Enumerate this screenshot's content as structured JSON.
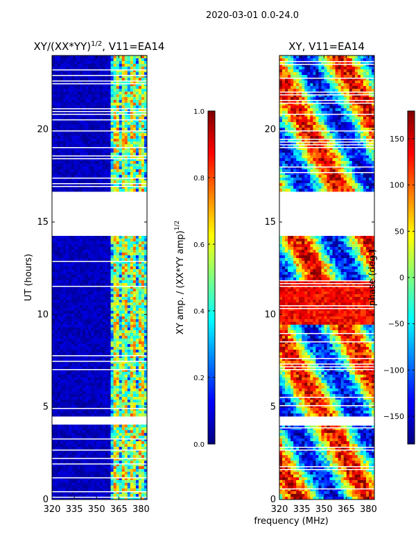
{
  "figure_title": "2020-03-01 0.0-24.0",
  "x_axis_label": "frequency (MHz)",
  "chart_data": [
    {
      "type": "heatmap",
      "title": "XY/(XX*YY)",
      "title_sup": "1/2",
      "title_suffix": ", V11=EA14",
      "xlabel": "",
      "ylabel": "UT (hours)",
      "xlim": [
        320,
        384
      ],
      "ylim": [
        0,
        24
      ],
      "x_ticks": [
        320,
        335,
        350,
        365,
        380
      ],
      "y_ticks": [
        0,
        5,
        10,
        15,
        20
      ],
      "colorbar": {
        "label": "XY amp. / (XX*YY amp)",
        "label_sup": "1/2",
        "range": [
          0.0,
          1.0
        ],
        "ticks": [
          "0.0",
          "0.2",
          "0.4",
          "0.6",
          "0.8",
          "1.0"
        ],
        "tick_values": [
          0.0,
          0.2,
          0.4,
          0.6,
          0.8,
          1.0
        ],
        "colormap": "jet"
      }
    },
    {
      "type": "heatmap",
      "title": "XY, V11=EA14",
      "xlabel": "frequency (MHz)",
      "ylabel": "",
      "xlim": [
        320,
        384
      ],
      "ylim": [
        0,
        24
      ],
      "x_ticks": [
        320,
        335,
        350,
        365,
        380
      ],
      "y_ticks": [
        0,
        5,
        10,
        15,
        20
      ],
      "colorbar": {
        "label": "phase (deg.)",
        "range": [
          -180,
          180
        ],
        "ticks": [
          "150",
          "100",
          "50",
          "0",
          "−50",
          "−100",
          "−150"
        ],
        "tick_values": [
          150,
          100,
          50,
          0,
          -50,
          -100,
          -150
        ],
        "colormap": "jet"
      }
    }
  ],
  "data_gaps_hours": [
    [
      14.2,
      16.6
    ],
    [
      4.0,
      4.5
    ]
  ],
  "colors": {
    "jet": [
      "#00007f",
      "#0000ff",
      "#007fff",
      "#00ffff",
      "#7fff7f",
      "#ffff00",
      "#ff7f00",
      "#ff0000",
      "#7f0000"
    ]
  }
}
